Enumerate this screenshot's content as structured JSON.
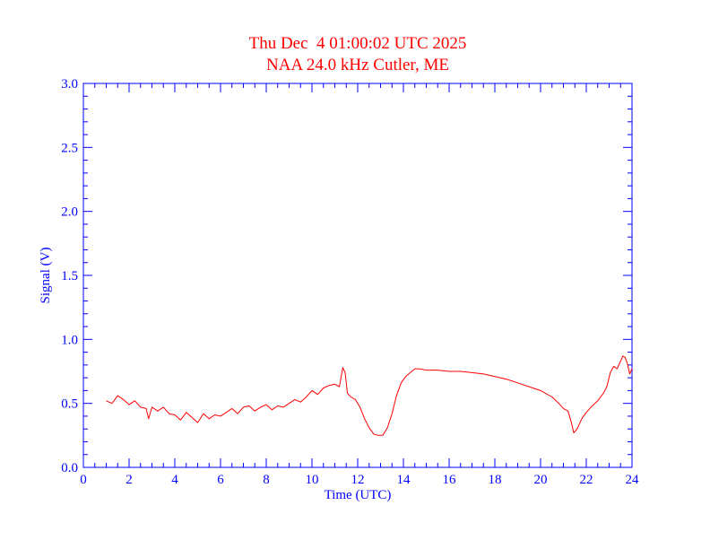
{
  "chart_data": {
    "type": "line",
    "title": "Thu Dec  4 01:00:02 UTC 2025",
    "subtitle": "NAA 24.0 kHz Cutler, ME",
    "xlabel": "Time (UTC)",
    "ylabel": "Signal (V)",
    "xlim": [
      0,
      24
    ],
    "ylim": [
      0,
      3.0
    ],
    "x_ticks": [
      "0",
      "2",
      "4",
      "6",
      "8",
      "10",
      "12",
      "14",
      "16",
      "18",
      "20",
      "22",
      "24"
    ],
    "y_ticks": [
      "0.0",
      "0.5",
      "1.0",
      "1.5",
      "2.0",
      "2.5",
      "3.0"
    ],
    "grid": false,
    "series": [
      {
        "color": "#ff0000",
        "x": [
          1.0,
          1.25,
          1.5,
          1.75,
          2.0,
          2.25,
          2.5,
          2.75,
          2.85,
          3.0,
          3.25,
          3.5,
          3.75,
          4.0,
          4.25,
          4.5,
          4.75,
          5.0,
          5.25,
          5.5,
          5.75,
          6.0,
          6.25,
          6.5,
          6.75,
          7.0,
          7.25,
          7.5,
          7.75,
          8.0,
          8.25,
          8.5,
          8.75,
          9.0,
          9.25,
          9.5,
          9.75,
          10.0,
          10.25,
          10.5,
          10.75,
          11.0,
          11.2,
          11.35,
          11.45,
          11.55,
          11.7,
          11.9,
          12.1,
          12.3,
          12.5,
          12.7,
          12.9,
          13.1,
          13.3,
          13.5,
          13.7,
          13.9,
          14.1,
          14.3,
          14.5,
          14.7,
          15.0,
          15.5,
          16.0,
          16.5,
          17.0,
          17.5,
          18.0,
          18.5,
          19.0,
          19.5,
          20.0,
          20.5,
          20.8,
          21.0,
          21.2,
          21.35,
          21.45,
          21.6,
          21.8,
          22.0,
          22.2,
          22.5,
          22.75,
          22.9,
          23.05,
          23.2,
          23.35,
          23.5,
          23.6,
          23.7,
          23.8,
          23.9,
          24.0
        ],
        "values": [
          0.52,
          0.5,
          0.56,
          0.53,
          0.49,
          0.52,
          0.47,
          0.46,
          0.38,
          0.47,
          0.44,
          0.47,
          0.42,
          0.41,
          0.37,
          0.43,
          0.39,
          0.35,
          0.42,
          0.38,
          0.41,
          0.4,
          0.43,
          0.46,
          0.42,
          0.47,
          0.48,
          0.44,
          0.47,
          0.49,
          0.45,
          0.48,
          0.47,
          0.5,
          0.53,
          0.51,
          0.55,
          0.6,
          0.57,
          0.62,
          0.64,
          0.65,
          0.63,
          0.78,
          0.74,
          0.58,
          0.55,
          0.53,
          0.47,
          0.38,
          0.31,
          0.26,
          0.25,
          0.25,
          0.31,
          0.42,
          0.56,
          0.66,
          0.71,
          0.74,
          0.77,
          0.77,
          0.76,
          0.76,
          0.75,
          0.75,
          0.74,
          0.73,
          0.71,
          0.69,
          0.66,
          0.63,
          0.6,
          0.55,
          0.5,
          0.46,
          0.44,
          0.35,
          0.27,
          0.3,
          0.38,
          0.43,
          0.47,
          0.52,
          0.58,
          0.63,
          0.74,
          0.79,
          0.77,
          0.83,
          0.87,
          0.86,
          0.81,
          0.73,
          0.77
        ]
      }
    ]
  }
}
